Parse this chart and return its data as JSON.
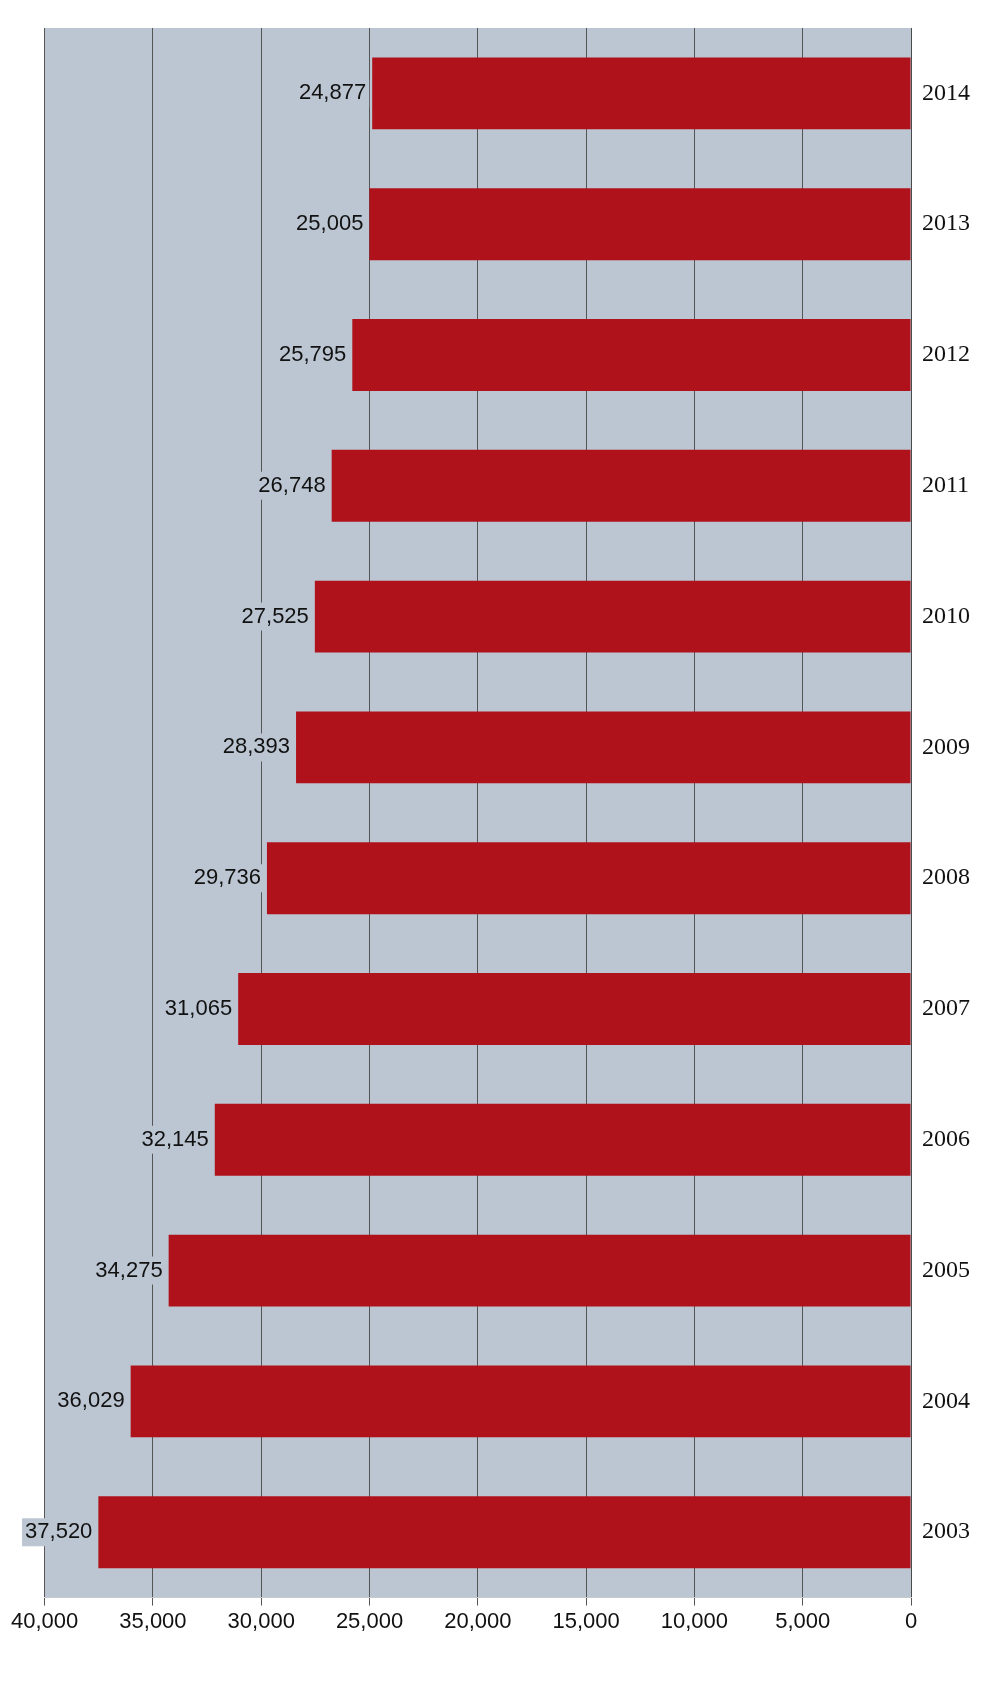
{
  "chart_data": {
    "type": "bar",
    "orientation": "horizontal",
    "categories": [
      "2014",
      "2013",
      "2012",
      "2011",
      "2010",
      "2009",
      "2008",
      "2007",
      "2006",
      "2005",
      "2004",
      "2003"
    ],
    "values": [
      24877,
      25005,
      25795,
      26748,
      27525,
      28393,
      29736,
      31065,
      32145,
      34275,
      36029,
      37520
    ],
    "color": "#b0121c",
    "xlim": [
      40000,
      0
    ],
    "xticks": [
      {
        "value": 40000,
        "label": "40,000"
      },
      {
        "value": 35000,
        "label": "35,000"
      },
      {
        "value": 30000,
        "label": "30,000"
      },
      {
        "value": 25000,
        "label": "25,000"
      },
      {
        "value": 20000,
        "label": "20,000"
      },
      {
        "value": 15000,
        "label": "15,000"
      },
      {
        "value": 10000,
        "label": "10,000"
      },
      {
        "value": 5000,
        "label": "5,000"
      },
      0
    ],
    "value_labels": [
      "24,877",
      "25,005",
      "25,795",
      "26,748",
      "27,525",
      "28,393",
      "29,736",
      "31,065",
      "32,145",
      "34,275",
      "36,029",
      "37,520"
    ],
    "grid": "x",
    "legend": false
  }
}
